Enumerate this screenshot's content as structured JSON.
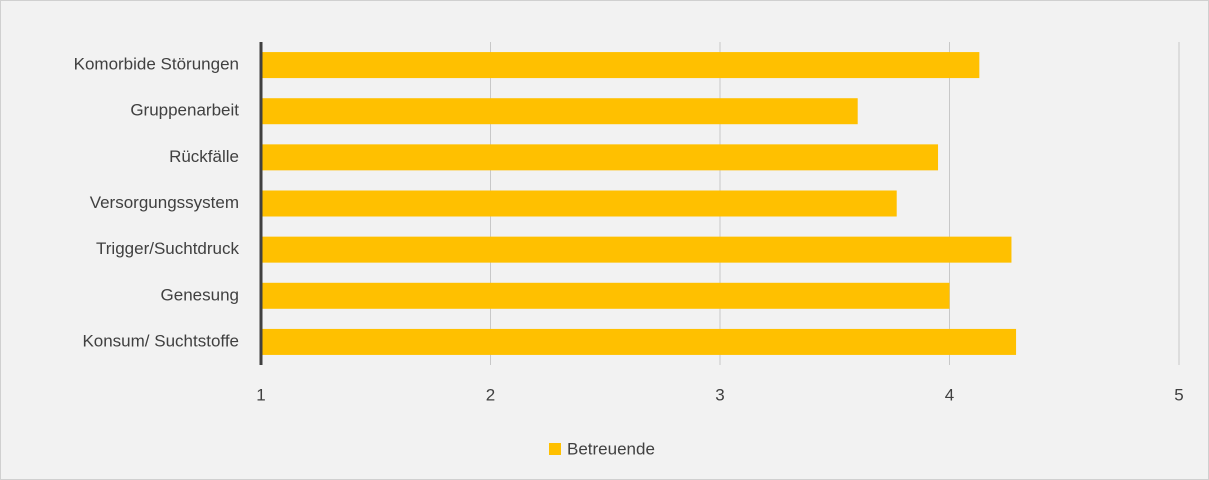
{
  "chart_data": {
    "type": "bar",
    "orientation": "horizontal",
    "categories": [
      "Komorbide Störungen",
      "Gruppenarbeit",
      "Rückfälle",
      "Versorgungssystem",
      "Trigger/Suchtdruck",
      "Genesung",
      "Konsum/ Suchtstoffe"
    ],
    "series": [
      {
        "name": "Betreuende",
        "color": "#ffc000",
        "values": [
          4.13,
          3.6,
          3.95,
          3.77,
          4.27,
          4.0,
          4.29
        ]
      }
    ],
    "xlim": [
      1,
      5
    ],
    "xticks": [
      1,
      2,
      3,
      4,
      5
    ],
    "grid": true,
    "legend": "bottom"
  }
}
